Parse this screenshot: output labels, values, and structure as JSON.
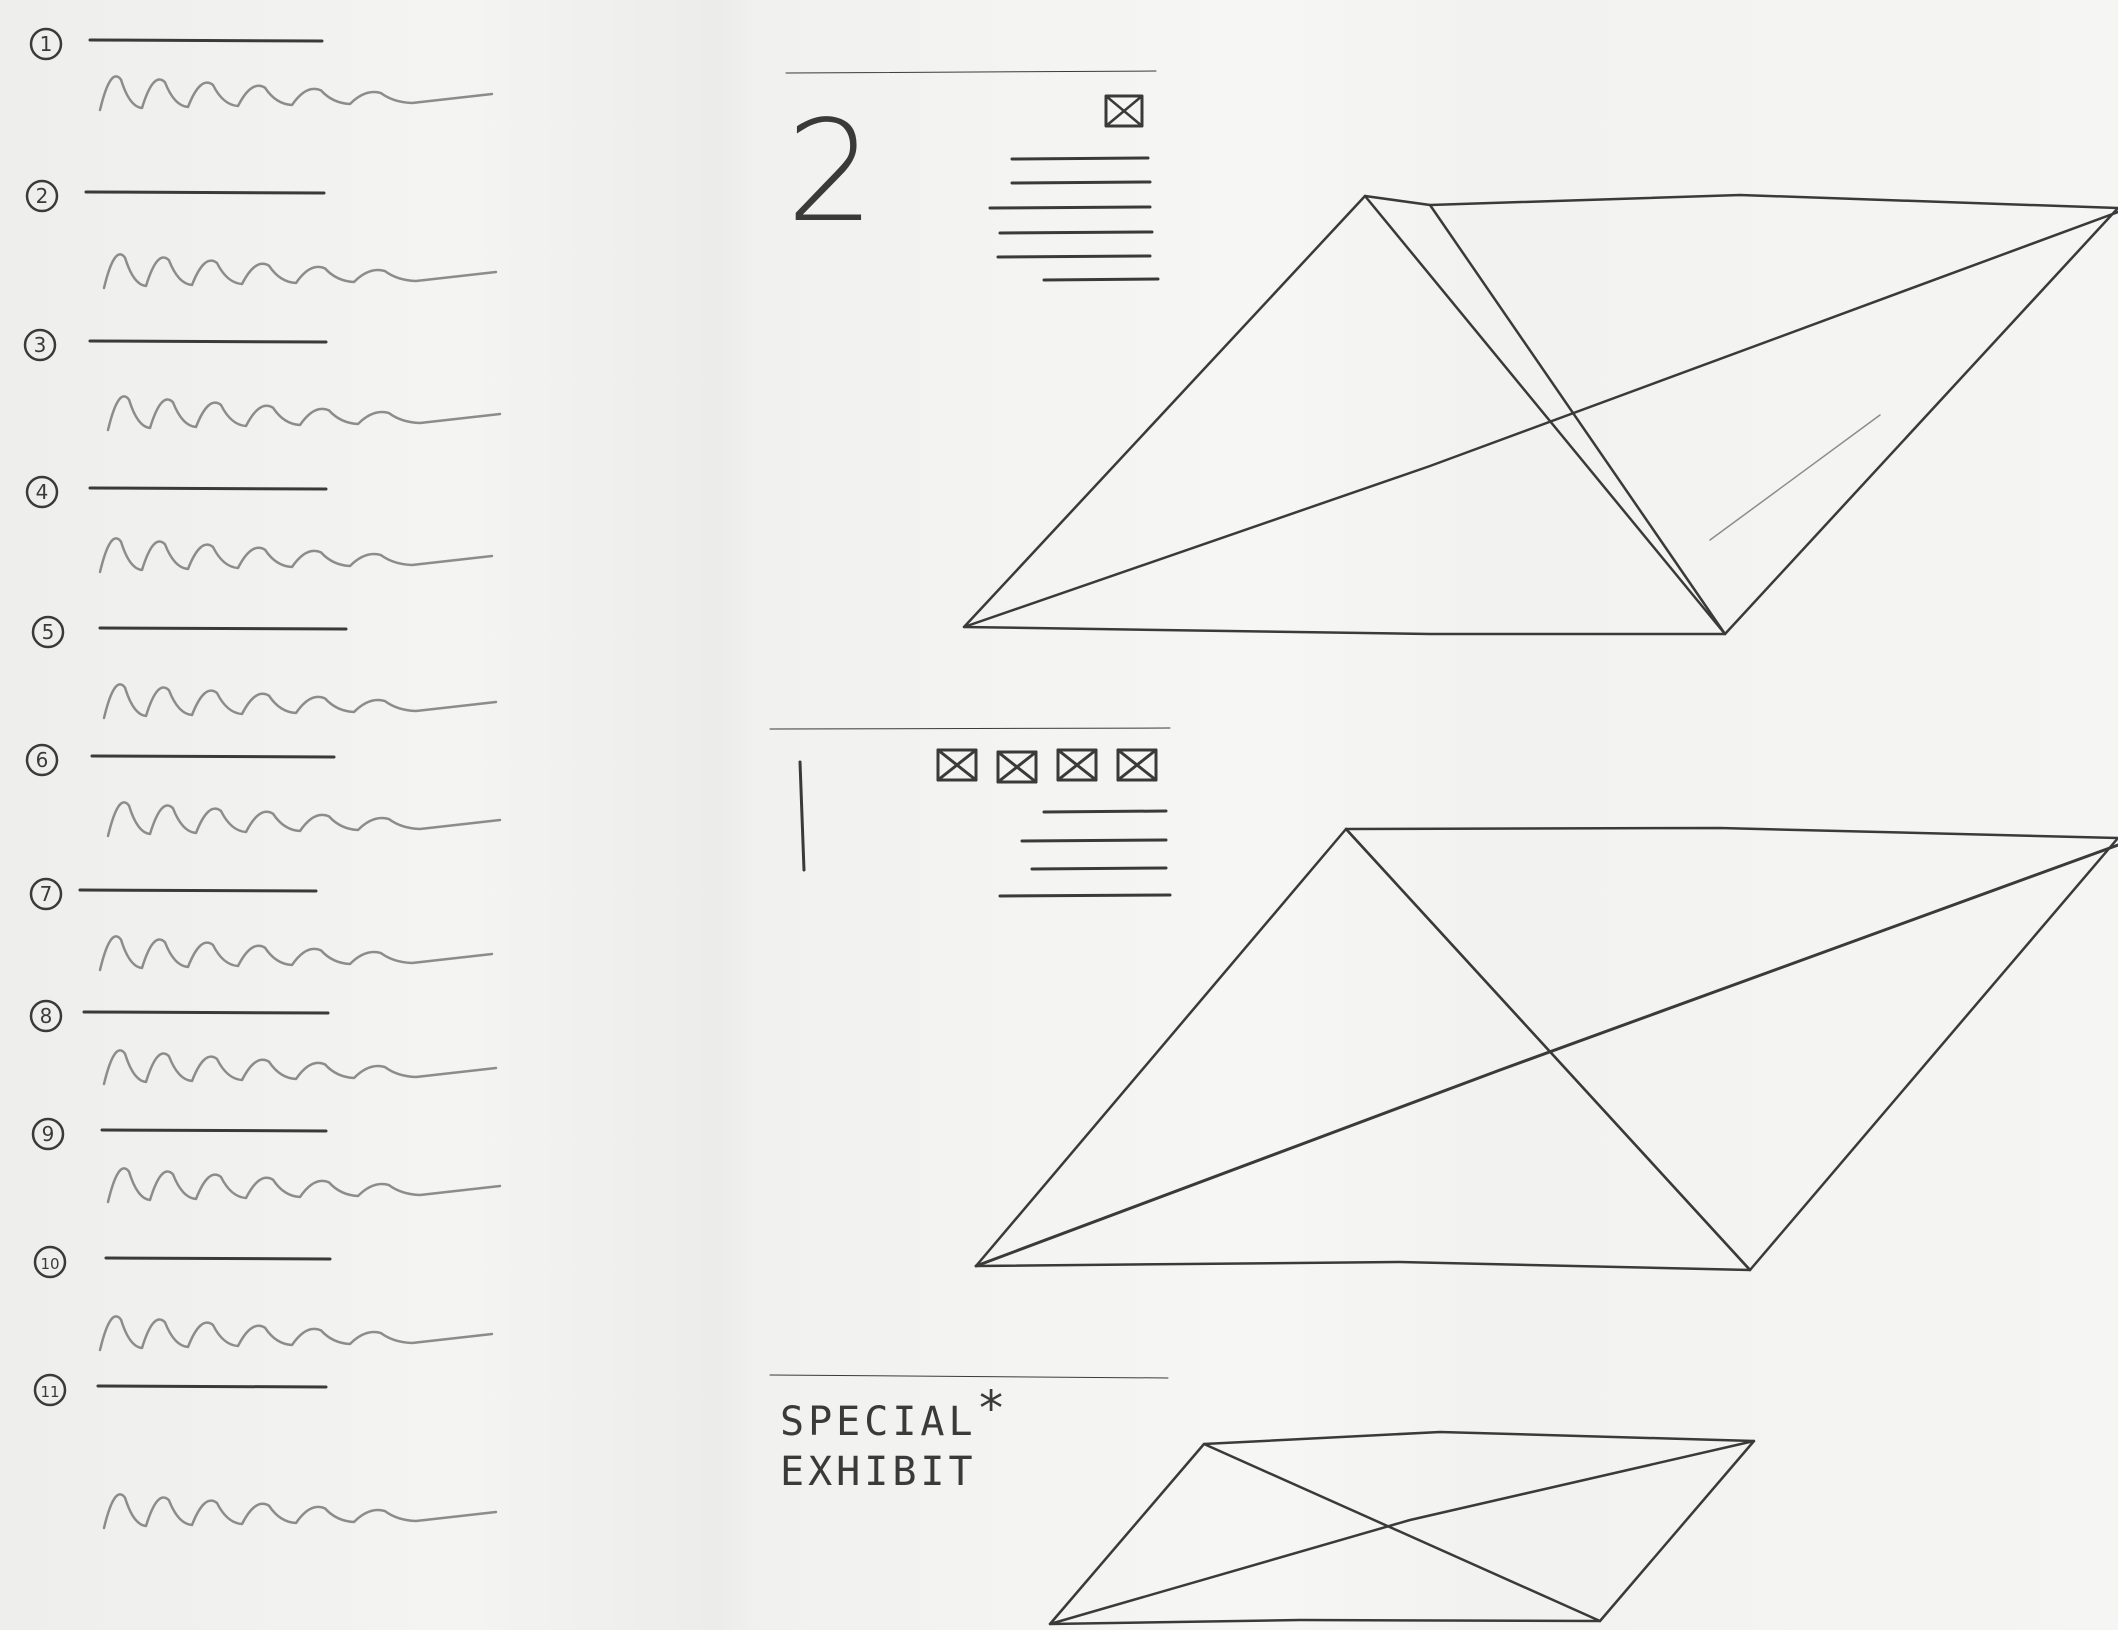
{
  "sections": [
    {
      "number": "2",
      "image_placeholders": 1,
      "text_lines": 6
    },
    {
      "number": "1",
      "image_placeholders": 4,
      "text_lines": 4
    }
  ],
  "special": {
    "line1": "SPECIAL",
    "asterisk": "*",
    "line2": "EXHIBIT"
  },
  "list_items": [
    "1",
    "2",
    "3",
    "4",
    "5",
    "6",
    "7",
    "8",
    "9",
    "10",
    "11"
  ],
  "colors": {
    "paper": "#f3f3f1",
    "pencil": "#3a3a3a",
    "faint_pencil": "#8c8c8c"
  }
}
